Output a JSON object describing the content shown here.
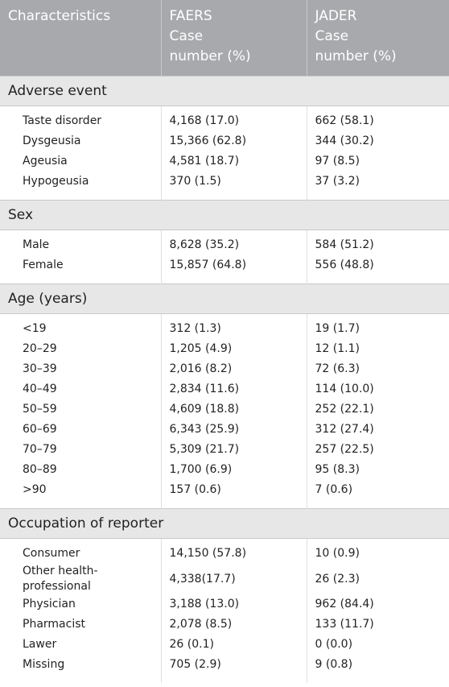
{
  "table": {
    "header": [
      "Characteristics",
      "FAERS\nCase\nnumber (%)",
      "JADER\nCase\nnumber (%)"
    ],
    "sections": [
      {
        "title": "Adverse event",
        "rows": [
          [
            "Taste disorder",
            "4,168 (17.0)",
            "662 (58.1)"
          ],
          [
            "Dysgeusia",
            "15,366 (62.8)",
            "344 (30.2)"
          ],
          [
            "Ageusia",
            "4,581 (18.7)",
            "97 (8.5)"
          ],
          [
            "Hypogeusia",
            "370 (1.5)",
            "37 (3.2)"
          ]
        ]
      },
      {
        "title": "Sex",
        "rows": [
          [
            "Male",
            "8,628 (35.2)",
            "584 (51.2)"
          ],
          [
            "Female",
            "15,857 (64.8)",
            "556 (48.8)"
          ]
        ]
      },
      {
        "title": "Age (years)",
        "rows": [
          [
            "<19",
            "312 (1.3)",
            "19 (1.7)"
          ],
          [
            "20–29",
            "1,205 (4.9)",
            "12 (1.1)"
          ],
          [
            "30–39",
            "2,016 (8.2)",
            "72 (6.3)"
          ],
          [
            "40–49",
            "2,834 (11.6)",
            "114 (10.0)"
          ],
          [
            "50–59",
            "4,609 (18.8)",
            "252 (22.1)"
          ],
          [
            "60–69",
            "6,343 (25.9)",
            "312 (27.4)"
          ],
          [
            "70–79",
            "5,309 (21.7)",
            "257 (22.5)"
          ],
          [
            "80–89",
            "1,700 (6.9)",
            "95 (8.3)"
          ],
          [
            ">90",
            "157 (0.6)",
            "7 (0.6)"
          ]
        ]
      },
      {
        "title": "Occupation of reporter",
        "rows": [
          [
            "Consumer",
            "14,150 (57.8)",
            "10 (0.9)"
          ],
          [
            "Other health-\nprofessional",
            "4,338(17.7)",
            "26 (2.3)"
          ],
          [
            "Physician",
            "3,188 (13.0)",
            "962 (84.4)"
          ],
          [
            "Pharmacist",
            "2,078 (8.5)",
            "133 (11.7)"
          ],
          [
            "Lawer",
            "26 (0.1)",
            "0 (0.0)"
          ],
          [
            "Missing",
            "705 (2.9)",
            "9 (0.8)"
          ]
        ]
      }
    ]
  }
}
